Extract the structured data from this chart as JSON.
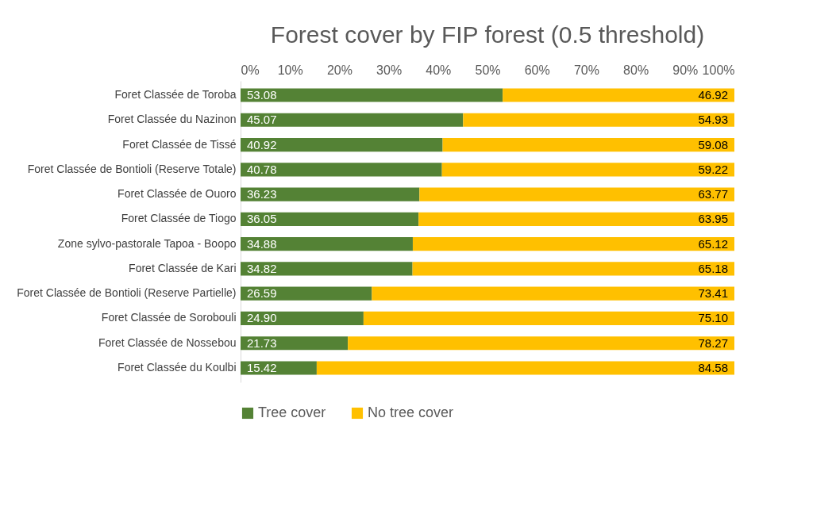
{
  "chart_data": {
    "type": "bar",
    "orientation": "horizontal",
    "stacked": true,
    "title": "Forest cover by FIP forest (0.5 threshold)",
    "categories": [
      "Foret Classée de Toroba",
      "Foret Classée du Nazinon",
      "Foret Classée de Tissé",
      "Foret Classée de Bontioli (Reserve Totale)",
      "Foret Classée de Ouoro",
      "Foret Classée de Tiogo",
      "Zone sylvo-pastorale Tapoa - Boopo",
      "Foret Classée de Kari",
      "Foret Classée de Bontioli (Reserve Partielle)",
      "Foret Classée de Sorobouli",
      "Foret Classée de Nossebou",
      "Foret Classée du Koulbi"
    ],
    "series": [
      {
        "name": "Tree cover",
        "color": "#548235",
        "values": [
          53.08,
          45.07,
          40.92,
          40.78,
          36.23,
          36.05,
          34.88,
          34.82,
          26.59,
          24.9,
          21.73,
          15.42
        ],
        "value_labels": [
          "53.08",
          "45.07",
          "40.92",
          "40.78",
          "36.23",
          "36.05",
          "34.88",
          "34.82",
          "26.59",
          "24.90",
          "21.73",
          "15.42"
        ]
      },
      {
        "name": "No tree cover",
        "color": "#ffc000",
        "values": [
          46.92,
          54.93,
          59.08,
          59.22,
          63.77,
          63.95,
          65.12,
          65.18,
          73.41,
          75.1,
          78.27,
          84.58
        ],
        "value_labels": [
          "46.92",
          "54.93",
          "59.08",
          "59.22",
          "63.77",
          "63.95",
          "65.12",
          "65.18",
          "73.41",
          "75.10",
          "78.27",
          "84.58"
        ]
      }
    ],
    "xlim": [
      0,
      100
    ],
    "xticks": [
      {
        "value": 0,
        "label": "0%"
      },
      {
        "value": 10,
        "label": "10%"
      },
      {
        "value": 20,
        "label": "20%"
      },
      {
        "value": 30,
        "label": "30%"
      },
      {
        "value": 40,
        "label": "40%"
      },
      {
        "value": 50,
        "label": "50%"
      },
      {
        "value": 60,
        "label": "60%"
      },
      {
        "value": 70,
        "label": "70%"
      },
      {
        "value": 80,
        "label": "80%"
      },
      {
        "value": 90,
        "label": "90%"
      },
      {
        "value": 100,
        "label": "100%"
      }
    ],
    "grid": false,
    "legend": "bottom"
  }
}
